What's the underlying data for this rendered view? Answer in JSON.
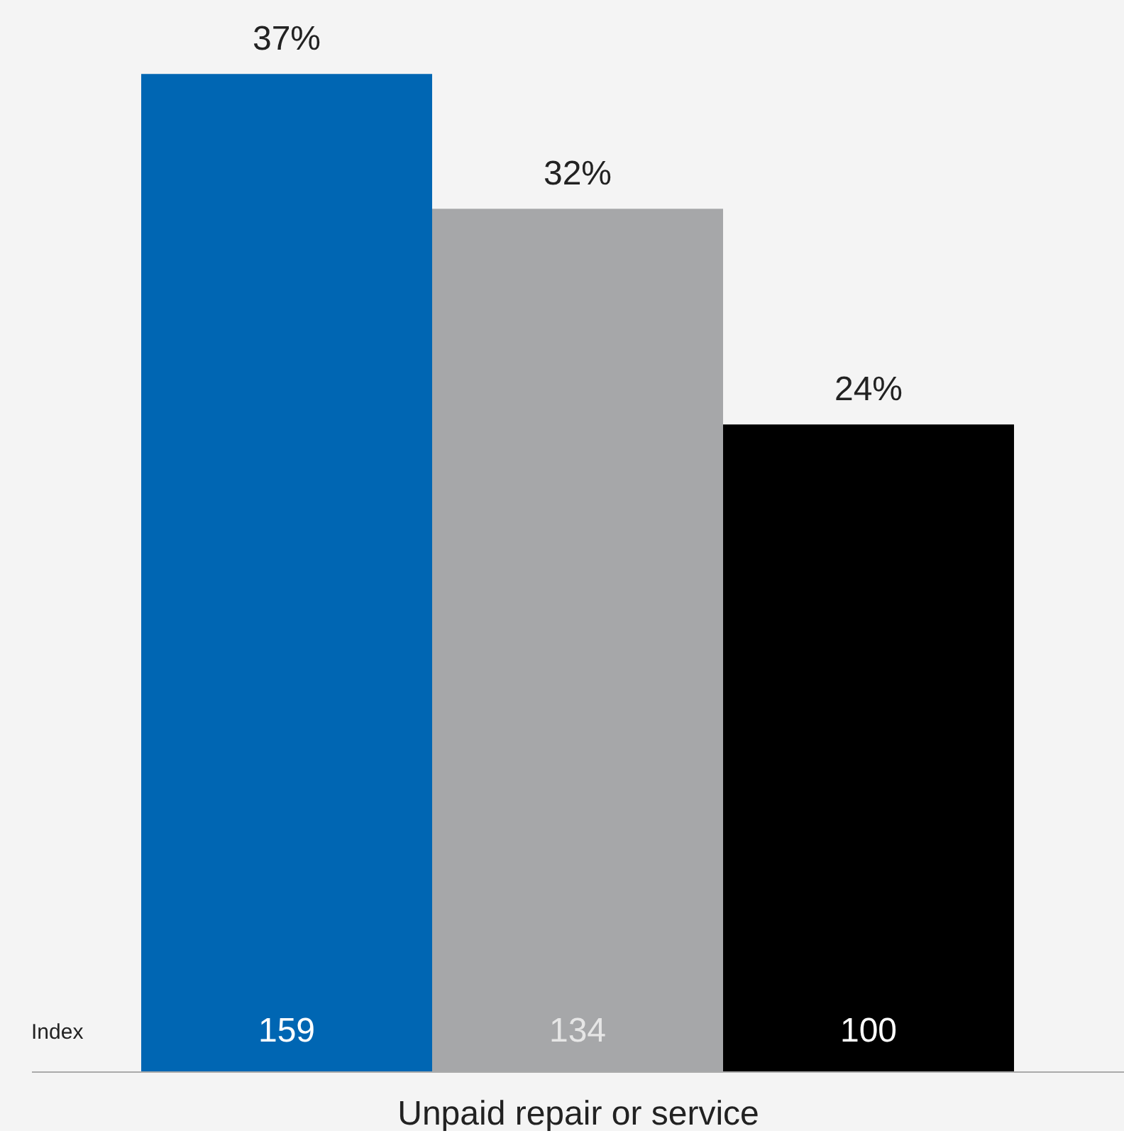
{
  "chart_data": {
    "type": "bar",
    "xlabel": "Unpaid repair or service",
    "categories": [
      null,
      null,
      null
    ],
    "values": [
      37,
      32,
      24
    ],
    "colors": [
      "#0066b3",
      "#a6a7a9",
      "#000000"
    ],
    "value_labels": [
      "37%",
      "32%",
      "24%"
    ],
    "annotations": [
      "Index",
      "159",
      "134",
      "100"
    ],
    "grid": false
  }
}
